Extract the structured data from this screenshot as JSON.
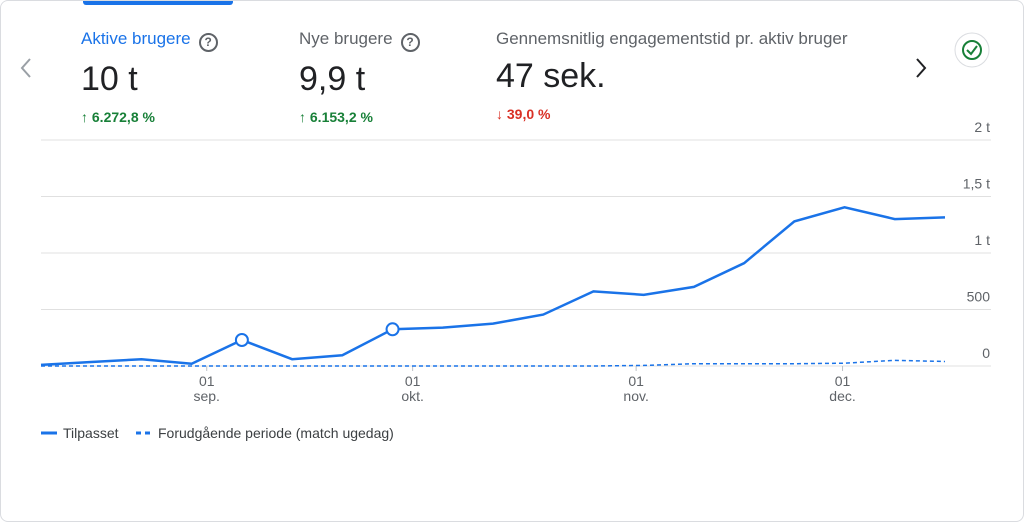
{
  "metrics": [
    {
      "label": "Aktive brugere",
      "value": "10 t",
      "change": "6.272,8 %",
      "direction": "up",
      "active": true
    },
    {
      "label": "Nye brugere",
      "value": "9,9 t",
      "change": "6.153,2 %",
      "direction": "up",
      "active": false
    },
    {
      "label": "Gennemsnitlig engagementstid pr. aktiv bruger",
      "value": "47 sek.",
      "change": "39,0 %",
      "direction": "down",
      "active": false
    }
  ],
  "chart_data": {
    "type": "line",
    "categories": [
      null,
      null,
      null,
      null,
      null,
      null,
      null,
      null,
      null,
      null,
      null,
      null,
      null,
      null,
      null,
      null,
      null,
      null,
      null
    ],
    "xticks": [
      {
        "value": 3.3,
        "label": "01 sep."
      },
      {
        "value": 7.4,
        "label": "01 okt."
      },
      {
        "value": 11.85,
        "label": "01 nov."
      },
      {
        "value": 15.96,
        "label": "01 dec."
      }
    ],
    "series": [
      {
        "name": "Tilpasset",
        "color": "#1a73e8",
        "dash": false,
        "markers": [
          4,
          7
        ],
        "values": [
          10,
          35,
          60,
          20,
          230,
          60,
          95,
          325,
          340,
          375,
          455,
          660,
          630,
          700,
          910,
          1280,
          1405,
          1300,
          1315
        ]
      },
      {
        "name": "Forudgående periode (match ugedag)",
        "color": "#1a73e8",
        "dash": true,
        "values": [
          0,
          0,
          0,
          0,
          0,
          0,
          0,
          0,
          0,
          0,
          0,
          0,
          5,
          20,
          20,
          20,
          25,
          50,
          40
        ]
      }
    ],
    "ylim": [
      0,
      2000
    ],
    "yticks": [
      0,
      500,
      {
        "value": 1000,
        "label": "1 t"
      },
      {
        "value": 1500,
        "label": "1,5 t"
      },
      {
        "value": 2000,
        "label": "2 t"
      }
    ],
    "grid": true
  }
}
